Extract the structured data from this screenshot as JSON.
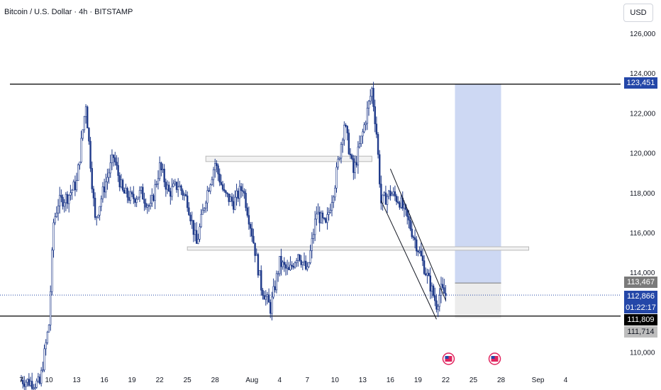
{
  "header": {
    "title": "Bitcoin / U.S. Dollar · 4h · BITSTAMP"
  },
  "currency_button": "USD",
  "badges": {
    "target": "123,451",
    "upper": "113,467",
    "last": "112,866",
    "countdown": "01:22:17",
    "support": "111,809",
    "lower": "111,714"
  },
  "colors": {
    "candle": "#1f3a8a",
    "last_price": "#2447a8",
    "target_zone": "#cdd8f3",
    "stop_zone": "#ececec",
    "levels": "#000000",
    "upper_badge": "#7a7a7a",
    "lower_badge": "#bdbdbd"
  },
  "chart_data": {
    "type": "candlestick",
    "title": "Bitcoin / U.S. Dollar · 4h · BITSTAMP",
    "y_axis": {
      "ticks": [
        126000,
        124000,
        122000,
        120000,
        118000,
        116000,
        114000,
        110000
      ],
      "tick_labels": [
        "126,000",
        "124,000",
        "122,000",
        "120,000",
        "118,000",
        "116,000",
        "114,000",
        "110,000"
      ],
      "range": [
        108900,
        127000
      ],
      "position": "right"
    },
    "x_axis": {
      "tick_labels": [
        "7",
        "10",
        "13",
        "16",
        "19",
        "22",
        "25",
        "28",
        "Aug",
        "4",
        "7",
        "10",
        "13",
        "16",
        "19",
        "22",
        "25",
        "28",
        "Sep",
        "4"
      ],
      "tick_dates": [
        "2025-07-07",
        "2025-07-10",
        "2025-07-13",
        "2025-07-16",
        "2025-07-19",
        "2025-07-22",
        "2025-07-25",
        "2025-07-28",
        "2025-08-01",
        "2025-08-04",
        "2025-08-07",
        "2025-08-10",
        "2025-08-13",
        "2025-08-16",
        "2025-08-19",
        "2025-08-22",
        "2025-08-25",
        "2025-08-28",
        "2025-09-01",
        "2025-09-04"
      ]
    },
    "price_path": [
      [
        "2025-07-07",
        108600
      ],
      [
        "2025-07-09",
        108400
      ],
      [
        "2025-07-10",
        111400
      ],
      [
        "2025-07-10",
        116500
      ],
      [
        "2025-07-11",
        117500
      ],
      [
        "2025-07-12",
        117800
      ],
      [
        "2025-07-13",
        118500
      ],
      [
        "2025-07-14",
        122500
      ],
      [
        "2025-07-14",
        119500
      ],
      [
        "2025-07-15",
        116600
      ],
      [
        "2025-07-16",
        118300
      ],
      [
        "2025-07-17",
        119800
      ],
      [
        "2025-07-18",
        118000
      ],
      [
        "2025-07-19",
        117700
      ],
      [
        "2025-07-20",
        118000
      ],
      [
        "2025-07-21",
        117200
      ],
      [
        "2025-07-22",
        119300
      ],
      [
        "2025-07-23",
        118000
      ],
      [
        "2025-07-24",
        118400
      ],
      [
        "2025-07-25",
        117600
      ],
      [
        "2025-07-26",
        115400
      ],
      [
        "2025-07-27",
        117800
      ],
      [
        "2025-07-28",
        119500
      ],
      [
        "2025-07-29",
        117900
      ],
      [
        "2025-07-30",
        117500
      ],
      [
        "2025-07-31",
        118300
      ],
      [
        "2025-08-01",
        116000
      ],
      [
        "2025-08-02",
        113300
      ],
      [
        "2025-08-03",
        112200
      ],
      [
        "2025-08-04",
        114500
      ],
      [
        "2025-08-05",
        114000
      ],
      [
        "2025-08-06",
        115000
      ],
      [
        "2025-08-07",
        114000
      ],
      [
        "2025-08-08",
        117000
      ],
      [
        "2025-08-09",
        116300
      ],
      [
        "2025-08-10",
        118500
      ],
      [
        "2025-08-11",
        121500
      ],
      [
        "2025-08-12",
        119000
      ],
      [
        "2025-08-13",
        121000
      ],
      [
        "2025-08-14",
        123200
      ],
      [
        "2025-08-14",
        121000
      ],
      [
        "2025-08-15",
        117500
      ],
      [
        "2025-08-16",
        118000
      ],
      [
        "2025-08-17",
        117600
      ],
      [
        "2025-08-18",
        116500
      ],
      [
        "2025-08-19",
        115200
      ],
      [
        "2025-08-20",
        113800
      ],
      [
        "2025-08-21",
        112400
      ],
      [
        "2025-08-21",
        113100
      ],
      [
        "2025-08-22",
        112866
      ]
    ],
    "horizontal_levels": [
      123451,
      111809
    ],
    "rectangles": [
      {
        "from": "2025-07-27",
        "to": "2025-08-14",
        "low": 119600,
        "high": 119800
      },
      {
        "from": "2025-07-25",
        "to": "2025-08-31",
        "low": 115150,
        "high": 115250
      }
    ],
    "position": {
      "from": "2025-08-23",
      "to": "2025-08-28",
      "entry": 113467,
      "target": 123451,
      "stop": 111714
    },
    "channel": [
      {
        "start": [
          "2025-08-16",
          119200
        ],
        "end": [
          "2025-08-22",
          112600
        ]
      },
      {
        "start": [
          "2025-08-15",
          117600
        ],
        "end": [
          "2025-08-21",
          111650
        ]
      }
    ],
    "badges": [
      123451,
      113467,
      112866,
      111809,
      111714
    ],
    "event_markers": [
      "2025-08-22",
      "2025-08-27"
    ],
    "last_price": 112866,
    "countdown": "01:22:17"
  }
}
